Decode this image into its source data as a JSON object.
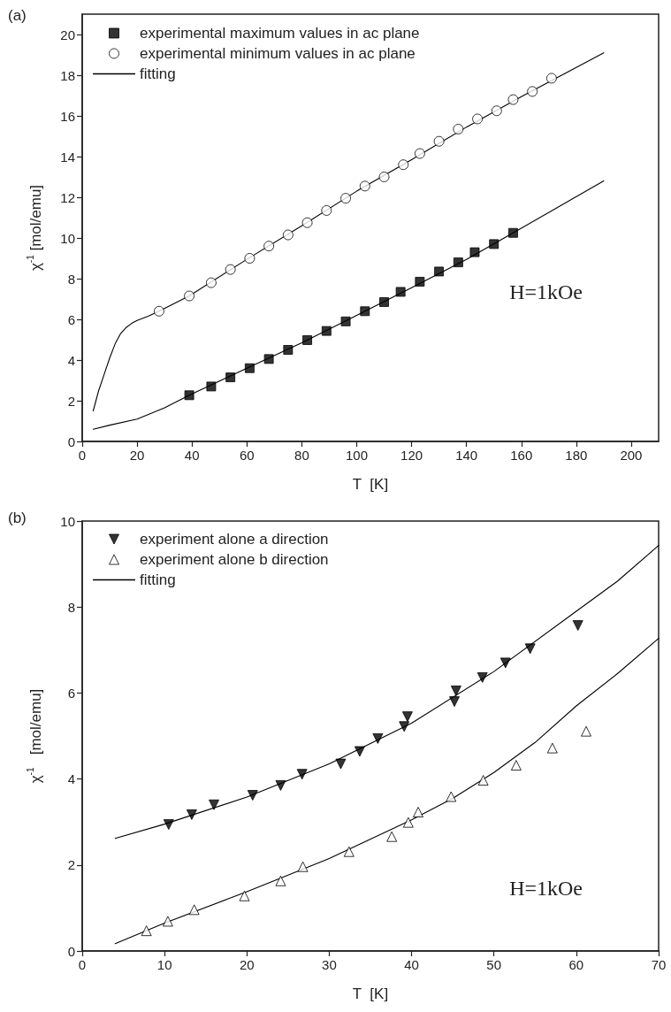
{
  "chart_data": [
    {
      "type": "scatter",
      "title": "(a)",
      "xlabel": "T  [K]",
      "ylabel": "χ$^{-1}$ [mol/emu]",
      "annotations": [
        "H=1kOe"
      ],
      "legend": "top left",
      "grid": false,
      "xlim": [
        0,
        210
      ],
      "xticks": [
        0,
        20,
        40,
        60,
        80,
        100,
        120,
        140,
        160,
        180,
        200
      ],
      "ylim": [
        0,
        21
      ],
      "yticks": [
        0,
        2,
        4,
        6,
        8,
        10,
        12,
        14,
        16,
        18,
        20
      ],
      "series": [
        {
          "name": "experimental maximum values in ac plane",
          "marker": "square",
          "color": "#000000",
          "x": [
            39,
            47,
            54,
            61,
            68,
            75,
            82,
            89,
            96,
            103,
            110,
            116,
            123,
            130,
            137,
            143,
            150,
            157
          ],
          "values": [
            2.27,
            2.7,
            3.15,
            3.6,
            4.05,
            4.5,
            4.98,
            5.43,
            5.9,
            6.4,
            6.85,
            7.35,
            7.85,
            8.35,
            8.8,
            9.3,
            9.7,
            10.25
          ]
        },
        {
          "name": "experimental minimum values in ac plane",
          "marker": "circle-open",
          "color": "#000000",
          "x": [
            28,
            39,
            47,
            54,
            61,
            68,
            75,
            82,
            89,
            96,
            103,
            110,
            117,
            123,
            130,
            137,
            144,
            151,
            157,
            164,
            171
          ],
          "values": [
            6.4,
            7.15,
            7.8,
            8.45,
            9.0,
            9.6,
            10.15,
            10.75,
            11.35,
            11.95,
            12.55,
            13.0,
            13.6,
            14.15,
            14.75,
            15.35,
            15.85,
            16.25,
            16.8,
            17.2,
            17.85
          ]
        },
        {
          "name": "fitting",
          "type": "line",
          "marker": "none",
          "color": "#000000",
          "x": [
            4,
            6,
            8,
            10,
            12,
            14,
            16,
            18,
            20,
            24,
            28,
            39,
            60,
            80,
            100,
            120,
            140,
            160,
            190
          ],
          "values": [
            1.5,
            2.5,
            3.3,
            4.1,
            4.8,
            5.3,
            5.6,
            5.8,
            5.95,
            6.15,
            6.4,
            7.15,
            8.95,
            10.6,
            12.3,
            13.85,
            15.45,
            16.95,
            19.1
          ]
        },
        {
          "type": "line",
          "marker": "none",
          "color": "#000000",
          "x": [
            4,
            10,
            20,
            30,
            39,
            60,
            80,
            100,
            120,
            140,
            157,
            190
          ],
          "values": [
            0.6,
            0.8,
            1.1,
            1.65,
            2.27,
            3.6,
            4.85,
            6.2,
            7.55,
            8.95,
            10.25,
            12.8
          ]
        }
      ]
    },
    {
      "type": "scatter",
      "title": "(b)",
      "xlabel": "T  [K]",
      "ylabel": "χ$^{-1}$   [mol/emu]",
      "annotations": [
        "H=1kOe"
      ],
      "legend": "top left",
      "grid": false,
      "xlim": [
        0,
        70
      ],
      "xticks": [
        0,
        10,
        20,
        30,
        40,
        50,
        60,
        70
      ],
      "ylim": [
        0,
        10
      ],
      "yticks": [
        0,
        2,
        4,
        6,
        8,
        10
      ],
      "series": [
        {
          "name": "experiment alone a direction",
          "marker": "triangle-down",
          "color": "#000000",
          "x": [
            10.5,
            13.3,
            16.0,
            20.7,
            24.1,
            26.7,
            31.4,
            33.7,
            35.9,
            39.1,
            39.5,
            45.2,
            45.4,
            48.6,
            51.4,
            54.4,
            60.2
          ],
          "values": [
            2.94,
            3.17,
            3.4,
            3.62,
            3.85,
            4.11,
            4.35,
            4.64,
            4.94,
            5.22,
            5.45,
            5.8,
            6.05,
            6.36,
            6.7,
            7.03,
            7.57
          ]
        },
        {
          "name": "experiment alone b direction",
          "marker": "triangle-open",
          "color": "#000000",
          "x": [
            7.8,
            10.4,
            13.6,
            19.7,
            24.1,
            26.8,
            32.4,
            37.6,
            39.6,
            40.8,
            44.8,
            48.7,
            52.7,
            57.1,
            61.2
          ],
          "values": [
            0.47,
            0.69,
            0.96,
            1.28,
            1.63,
            1.96,
            2.31,
            2.66,
            2.99,
            3.23,
            3.59,
            3.97,
            4.32,
            4.72,
            5.11
          ]
        },
        {
          "name": "fitting",
          "type": "line",
          "marker": "none",
          "color": "#000000",
          "x": [
            4,
            10,
            20,
            30,
            40,
            50,
            60,
            65,
            70
          ],
          "values": [
            2.62,
            2.95,
            3.58,
            4.35,
            5.3,
            6.5,
            7.9,
            8.6,
            9.43
          ]
        },
        {
          "type": "line",
          "marker": "none",
          "color": "#000000",
          "x": [
            4,
            10,
            20,
            30,
            40,
            45,
            50,
            55,
            60,
            65,
            70
          ],
          "values": [
            0.17,
            0.65,
            1.38,
            2.15,
            3.05,
            3.55,
            4.15,
            4.85,
            5.7,
            6.45,
            7.27
          ]
        }
      ]
    }
  ]
}
